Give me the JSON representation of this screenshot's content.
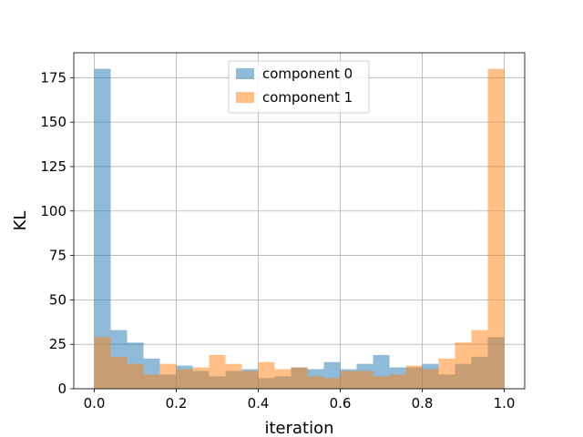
{
  "chart_data": {
    "type": "bar",
    "subtype": "overlapping histogram",
    "xlabel": "iteration",
    "ylabel": "KL",
    "xlim": [
      -0.05,
      1.05
    ],
    "ylim": [
      0,
      189
    ],
    "xticks": [
      "0.0",
      "0.2",
      "0.4",
      "0.6",
      "0.8",
      "1.0"
    ],
    "yticks": [
      "0",
      "25",
      "50",
      "75",
      "100",
      "125",
      "150",
      "175"
    ],
    "grid": true,
    "legend_position": "top-center",
    "bin_edges": [
      0.0,
      0.04,
      0.08,
      0.12,
      0.16,
      0.2,
      0.24,
      0.28,
      0.32,
      0.36,
      0.4,
      0.44,
      0.48,
      0.52,
      0.56,
      0.6,
      0.64,
      0.68,
      0.72,
      0.76,
      0.8,
      0.84,
      0.88,
      0.92,
      0.96,
      1.0
    ],
    "series": [
      {
        "name": "component 0",
        "color": "#1f77b4",
        "values": [
          180,
          33,
          26,
          17,
          8,
          13,
          10,
          7,
          10,
          11,
          6,
          7,
          12,
          11,
          15,
          11,
          14,
          19,
          12,
          12,
          14,
          8,
          14,
          18,
          29
        ]
      },
      {
        "name": "component 1",
        "color": "#ff7f0e",
        "values": [
          29,
          18,
          14,
          8,
          14,
          11,
          12,
          19,
          14,
          10,
          15,
          11,
          12,
          7,
          6,
          10,
          10,
          7,
          8,
          13,
          11,
          17,
          26,
          33,
          180
        ]
      }
    ],
    "alpha": 0.5
  }
}
